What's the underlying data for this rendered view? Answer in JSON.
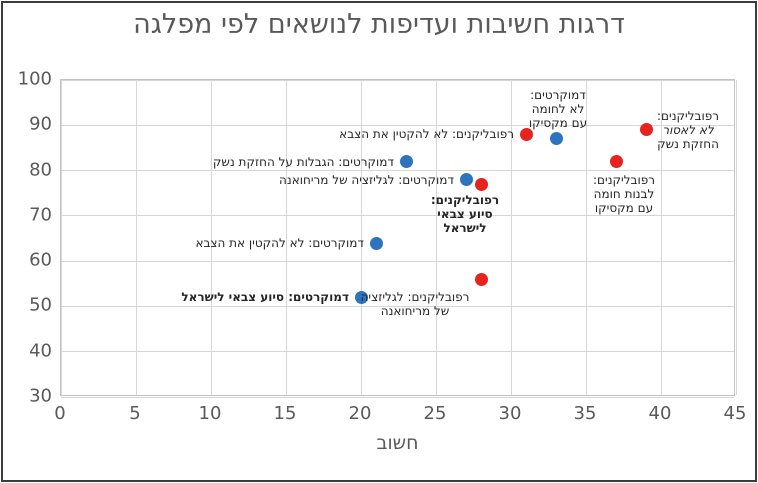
{
  "chart_data": {
    "type": "scatter",
    "title": "דרגות חשיבות ועדיפות לנושאים לפי מפלגה",
    "xlabel": "חשוב",
    "ylabel": "",
    "xlim": [
      0,
      45
    ],
    "ylim": [
      30,
      100
    ],
    "x_ticks": [
      0,
      5,
      10,
      15,
      20,
      25,
      30,
      35,
      40,
      45
    ],
    "y_ticks": [
      100,
      90,
      80,
      70,
      60,
      50,
      40,
      30
    ],
    "grid": true,
    "legend": "none",
    "colors": {
      "democrats": "#2e73be",
      "republicans": "#e6231e"
    },
    "series": [
      {
        "name": "דמוקרטים",
        "color_key": "democrats",
        "points": [
          {
            "x": 33,
            "y": 87,
            "label_lines": [
              "דמוקרטים:",
              "לא לחומה",
              "עם מקסיקו"
            ],
            "label_side": "above",
            "label_dx": 2
          },
          {
            "x": 23,
            "y": 82,
            "label_lines": [
              "דמוקרטים: הגבלות על החזקת נשק"
            ],
            "label_side": "left"
          },
          {
            "x": 27,
            "y": 78,
            "label_lines": [
              "דמוקרטים: לגליזציה של מריחואנה"
            ],
            "label_side": "left"
          },
          {
            "x": 21,
            "y": 64,
            "label_lines": [
              "דמוקרטים: לא להקטין את הצבא"
            ],
            "label_side": "left"
          },
          {
            "x": 20,
            "y": 52,
            "label_lines": [
              "דמוקרטים: סיוע צבאי לישראל"
            ],
            "label_side": "left",
            "bold": true
          }
        ]
      },
      {
        "name": "רפובליקנים",
        "color_key": "republicans",
        "points": [
          {
            "x": 31,
            "y": 88,
            "label_lines": [
              "רפובליקנים: לא להקטין את הצבא"
            ],
            "label_side": "left"
          },
          {
            "x": 39,
            "y": 89,
            "label_lines": [
              "רפובליקנים:",
              "לא לאסור",
              "החזקת נשק"
            ],
            "label_side": "right",
            "italic_lines": [
              1
            ]
          },
          {
            "x": 37,
            "y": 82,
            "label_lines": [
              "רפובליקנים:",
              "לבנות חומה",
              "עם מקסיקו"
            ],
            "label_side": "below",
            "label_dx": 8,
            "label_dy": 2
          },
          {
            "x": 28,
            "y": 77,
            "label_lines": [
              "רפובליקנים:",
              "סיוע צבאי",
              "לישראל"
            ],
            "label_side": "below",
            "label_dx": -16,
            "bold": true
          },
          {
            "x": 28,
            "y": 56,
            "label_lines": [
              "רפובליקנים: לגליזציה",
              "של מריחואנה"
            ],
            "label_side": "below",
            "label_dx": -66,
            "label_dy": 2
          }
        ]
      }
    ]
  }
}
